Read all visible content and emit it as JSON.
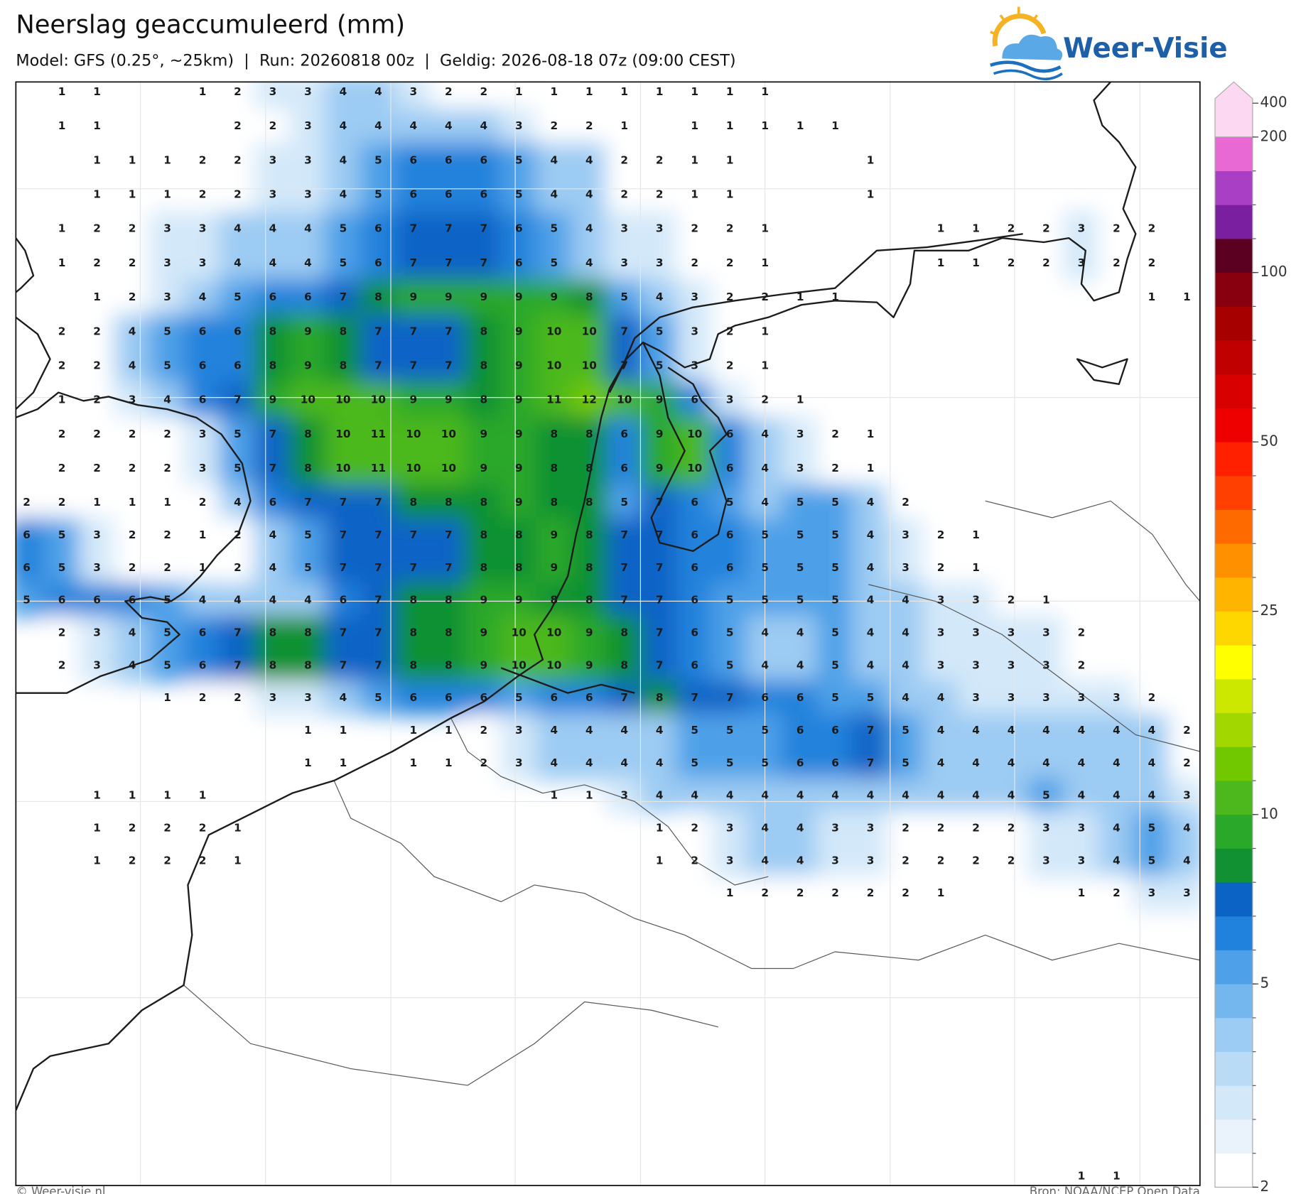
{
  "header": {
    "title": "Neerslag geaccumuleerd (mm)",
    "subtitle": "Model: GFS (0.25°, ~25km)  |  Run: 20260818 00z  |  Geldig: 2026-08-18 07z (09:00 CEST)",
    "logo": "Weer-Visie"
  },
  "colorbar": {
    "levels": [
      2,
      2.5,
      3,
      3.5,
      4,
      4.5,
      5,
      6,
      7,
      8,
      9,
      10,
      12,
      14,
      16,
      18,
      20,
      25,
      30,
      35,
      40,
      45,
      50,
      60,
      70,
      80,
      90,
      100,
      125,
      150,
      175,
      200
    ],
    "colors": [
      "#ffffff",
      "#eaf3fc",
      "#d3e8f9",
      "#b9dbf6",
      "#9ccbf3",
      "#74b6ee",
      "#4ea0e8",
      "#2082dc",
      "#0b63c6",
      "#119131",
      "#2aa82a",
      "#4cb81e",
      "#72c800",
      "#a2d800",
      "#cde800",
      "#ffff00",
      "#ffd700",
      "#ffb400",
      "#ff9000",
      "#ff6a00",
      "#ff4000",
      "#ff2000",
      "#ee0000",
      "#d80000",
      "#c00000",
      "#a60000",
      "#880010",
      "#5c0022",
      "#7a1fa0",
      "#a93fc4",
      "#e868d4"
    ],
    "extend_color": "#fcd8f2",
    "ticks": [
      2,
      5,
      10,
      25,
      50,
      100,
      200,
      400
    ]
  },
  "grid": {
    "rows": [
      [
        null,
        1,
        1,
        null,
        null,
        1,
        2,
        3,
        3,
        4,
        4,
        3,
        2,
        2,
        1,
        1,
        1,
        1,
        1,
        1,
        1,
        1,
        null,
        null,
        null,
        null,
        null,
        null,
        null,
        null,
        null,
        null,
        null,
        null
      ],
      [
        null,
        1,
        1,
        null,
        null,
        null,
        2,
        2,
        3,
        4,
        4,
        4,
        4,
        4,
        3,
        2,
        2,
        1,
        null,
        1,
        1,
        1,
        1,
        1,
        null,
        null,
        null,
        null,
        null,
        null,
        null,
        null,
        null,
        null
      ],
      [
        null,
        null,
        1,
        1,
        1,
        2,
        2,
        3,
        3,
        4,
        5,
        6,
        6,
        6,
        5,
        4,
        4,
        2,
        2,
        1,
        1,
        null,
        null,
        null,
        1,
        null,
        null,
        null,
        null,
        null,
        null,
        null,
        null,
        null
      ],
      [
        null,
        null,
        1,
        1,
        1,
        2,
        2,
        3,
        3,
        4,
        5,
        6,
        6,
        6,
        5,
        4,
        4,
        2,
        2,
        1,
        1,
        null,
        null,
        null,
        1,
        null,
        null,
        null,
        null,
        null,
        null,
        null,
        null,
        null
      ],
      [
        null,
        1,
        2,
        2,
        3,
        3,
        4,
        4,
        4,
        5,
        6,
        7,
        7,
        7,
        6,
        5,
        4,
        3,
        3,
        2,
        2,
        1,
        null,
        null,
        null,
        null,
        1,
        1,
        2,
        2,
        3,
        2,
        2,
        null
      ],
      [
        null,
        1,
        2,
        2,
        3,
        3,
        4,
        4,
        4,
        5,
        6,
        7,
        7,
        7,
        6,
        5,
        4,
        3,
        3,
        2,
        2,
        1,
        null,
        null,
        null,
        null,
        1,
        1,
        2,
        2,
        3,
        2,
        2,
        null
      ],
      [
        null,
        null,
        1,
        2,
        3,
        4,
        5,
        6,
        6,
        7,
        8,
        9,
        9,
        9,
        9,
        9,
        8,
        5,
        4,
        3,
        2,
        2,
        1,
        1,
        null,
        null,
        null,
        null,
        null,
        null,
        null,
        null,
        1,
        1
      ],
      [
        null,
        2,
        2,
        4,
        5,
        6,
        6,
        8,
        9,
        8,
        7,
        7,
        7,
        8,
        9,
        10,
        10,
        7,
        5,
        3,
        2,
        1,
        null,
        null,
        null,
        null,
        null,
        null,
        null,
        null,
        null,
        null,
        null,
        null
      ],
      [
        null,
        2,
        2,
        4,
        5,
        6,
        6,
        8,
        9,
        8,
        7,
        7,
        7,
        8,
        9,
        10,
        10,
        7,
        5,
        3,
        2,
        1,
        null,
        null,
        null,
        null,
        null,
        null,
        null,
        null,
        null,
        null,
        null,
        null
      ],
      [
        null,
        1,
        2,
        3,
        4,
        6,
        7,
        9,
        10,
        10,
        10,
        9,
        9,
        8,
        9,
        11,
        12,
        10,
        9,
        6,
        3,
        2,
        1,
        null,
        null,
        null,
        null,
        null,
        null,
        null,
        null,
        null,
        null,
        null
      ],
      [
        null,
        2,
        2,
        2,
        2,
        3,
        5,
        7,
        8,
        10,
        11,
        10,
        10,
        9,
        9,
        8,
        8,
        6,
        9,
        10,
        6,
        4,
        3,
        2,
        1,
        null,
        null,
        null,
        null,
        null,
        null,
        null,
        null,
        null
      ],
      [
        null,
        2,
        2,
        2,
        2,
        3,
        5,
        7,
        8,
        10,
        11,
        10,
        10,
        9,
        9,
        8,
        8,
        6,
        9,
        10,
        6,
        4,
        3,
        2,
        1,
        null,
        null,
        null,
        null,
        null,
        null,
        null,
        null,
        null
      ],
      [
        2,
        2,
        1,
        1,
        1,
        2,
        4,
        6,
        7,
        7,
        7,
        8,
        8,
        8,
        9,
        8,
        8,
        5,
        7,
        6,
        5,
        4,
        5,
        5,
        4,
        2,
        null,
        null,
        null,
        null,
        null,
        null,
        null,
        null
      ],
      [
        6,
        5,
        3,
        2,
        2,
        1,
        2,
        4,
        5,
        7,
        7,
        7,
        7,
        8,
        8,
        9,
        8,
        7,
        7,
        6,
        6,
        5,
        5,
        5,
        4,
        3,
        2,
        1,
        null,
        null,
        null,
        null,
        null,
        null
      ],
      [
        6,
        5,
        3,
        2,
        2,
        1,
        2,
        4,
        5,
        7,
        7,
        7,
        7,
        8,
        8,
        9,
        8,
        7,
        7,
        6,
        6,
        5,
        5,
        5,
        4,
        3,
        2,
        1,
        null,
        null,
        null,
        null,
        null,
        null
      ],
      [
        5,
        6,
        6,
        6,
        5,
        4,
        4,
        4,
        4,
        6,
        7,
        8,
        8,
        9,
        9,
        8,
        8,
        7,
        7,
        6,
        5,
        5,
        5,
        5,
        4,
        4,
        3,
        3,
        2,
        1,
        null,
        null,
        null,
        null
      ],
      [
        null,
        2,
        3,
        4,
        5,
        6,
        7,
        8,
        8,
        7,
        7,
        8,
        8,
        9,
        10,
        10,
        9,
        8,
        7,
        6,
        5,
        4,
        4,
        5,
        4,
        4,
        3,
        3,
        3,
        3,
        2,
        null,
        null,
        null
      ],
      [
        null,
        2,
        3,
        4,
        5,
        6,
        7,
        8,
        8,
        7,
        7,
        8,
        8,
        9,
        10,
        10,
        9,
        8,
        7,
        6,
        5,
        4,
        4,
        5,
        4,
        4,
        3,
        3,
        3,
        3,
        2,
        null,
        null,
        null
      ],
      [
        null,
        null,
        null,
        null,
        1,
        2,
        2,
        3,
        3,
        4,
        5,
        6,
        6,
        6,
        5,
        6,
        6,
        7,
        8,
        7,
        7,
        6,
        6,
        5,
        5,
        4,
        4,
        3,
        3,
        3,
        3,
        3,
        2,
        null
      ],
      [
        null,
        null,
        null,
        null,
        null,
        null,
        null,
        null,
        1,
        1,
        null,
        1,
        1,
        2,
        3,
        4,
        4,
        4,
        4,
        5,
        5,
        5,
        6,
        6,
        7,
        5,
        4,
        4,
        4,
        4,
        4,
        4,
        4,
        2
      ],
      [
        null,
        null,
        null,
        null,
        null,
        null,
        null,
        null,
        1,
        1,
        null,
        1,
        1,
        2,
        3,
        4,
        4,
        4,
        4,
        5,
        5,
        5,
        6,
        6,
        7,
        5,
        4,
        4,
        4,
        4,
        4,
        4,
        4,
        2
      ],
      [
        null,
        null,
        1,
        1,
        1,
        1,
        null,
        null,
        null,
        null,
        null,
        null,
        null,
        null,
        null,
        1,
        1,
        3,
        4,
        4,
        4,
        4,
        4,
        4,
        4,
        4,
        4,
        4,
        4,
        5,
        4,
        4,
        4,
        3
      ],
      [
        null,
        null,
        1,
        2,
        2,
        2,
        1,
        null,
        null,
        null,
        null,
        null,
        null,
        null,
        null,
        null,
        null,
        null,
        1,
        2,
        3,
        4,
        4,
        3,
        3,
        2,
        2,
        2,
        2,
        3,
        3,
        4,
        5,
        4
      ],
      [
        null,
        null,
        1,
        2,
        2,
        2,
        1,
        null,
        null,
        null,
        null,
        null,
        null,
        null,
        null,
        null,
        null,
        null,
        1,
        2,
        3,
        4,
        4,
        3,
        3,
        2,
        2,
        2,
        2,
        3,
        3,
        4,
        5,
        4
      ],
      [
        null,
        null,
        null,
        null,
        null,
        null,
        null,
        null,
        null,
        null,
        null,
        null,
        null,
        null,
        null,
        null,
        null,
        null,
        null,
        null,
        1,
        2,
        2,
        2,
        2,
        2,
        1,
        null,
        null,
        null,
        1,
        2,
        3,
        3
      ]
    ],
    "bottom_row": [
      null,
      null,
      null,
      null,
      null,
      null,
      null,
      null,
      null,
      null,
      null,
      null,
      null,
      null,
      null,
      null,
      null,
      null,
      null,
      null,
      null,
      null,
      null,
      null,
      null,
      null,
      null,
      null,
      null,
      null,
      1,
      1,
      null,
      null
    ]
  },
  "footer": {
    "left": "© Weer-visie.nl",
    "right": "Bron: NOAA/NCEP Open Data"
  }
}
